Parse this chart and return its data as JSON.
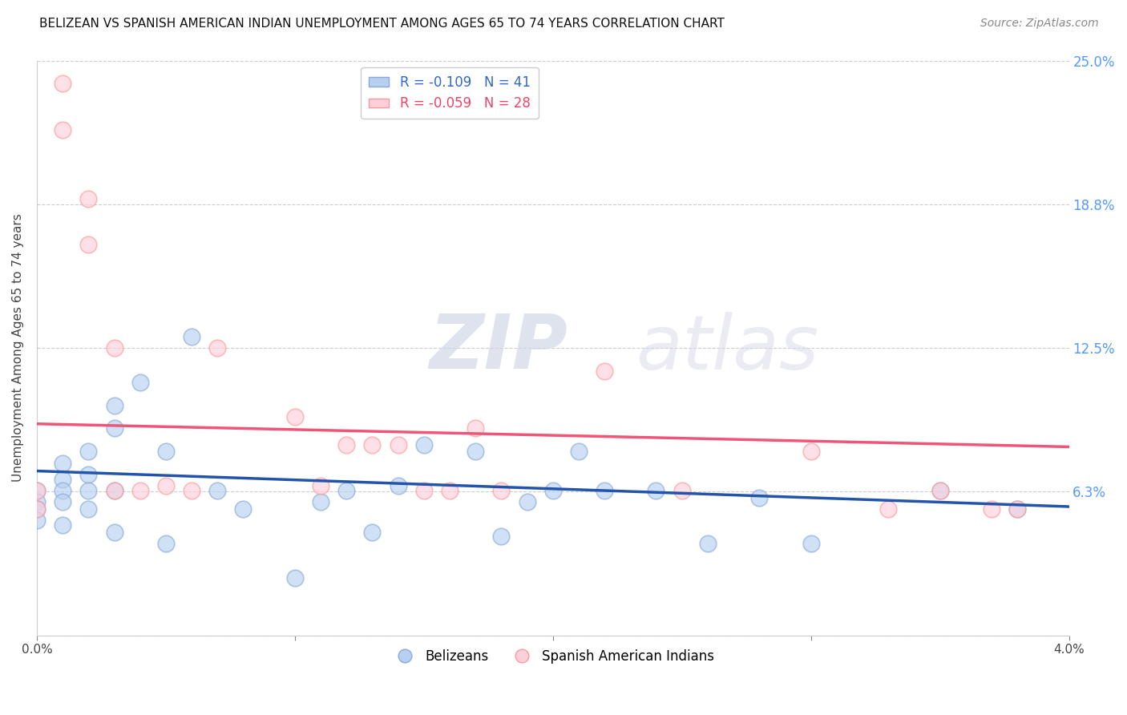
{
  "title": "BELIZEAN VS SPANISH AMERICAN INDIAN UNEMPLOYMENT AMONG AGES 65 TO 74 YEARS CORRELATION CHART",
  "source": "Source: ZipAtlas.com",
  "ylabel": "Unemployment Among Ages 65 to 74 years",
  "xlim": [
    0.0,
    0.04
  ],
  "ylim": [
    0.0,
    0.25
  ],
  "xticks": [
    0.0,
    0.01,
    0.02,
    0.03,
    0.04
  ],
  "xticklabels": [
    "0.0%",
    "",
    "",
    "",
    "4.0%"
  ],
  "ytick_positions": [
    0.0,
    0.0625,
    0.125,
    0.1875,
    0.25
  ],
  "ytick_labels": [
    "",
    "6.3%",
    "12.5%",
    "18.8%",
    "25.0%"
  ],
  "blue_R": "-0.109",
  "blue_N": "41",
  "pink_R": "-0.059",
  "pink_N": "28",
  "blue_line_color": "#2255AA",
  "pink_line_color": "#EE5577",
  "watermark_zip": "ZIP",
  "watermark_atlas": "atlas",
  "belizean_x": [
    0.0,
    0.0,
    0.0,
    0.0,
    0.001,
    0.001,
    0.001,
    0.001,
    0.001,
    0.002,
    0.002,
    0.002,
    0.002,
    0.003,
    0.003,
    0.003,
    0.003,
    0.004,
    0.005,
    0.005,
    0.006,
    0.007,
    0.008,
    0.01,
    0.011,
    0.012,
    0.013,
    0.014,
    0.015,
    0.017,
    0.018,
    0.019,
    0.02,
    0.021,
    0.022,
    0.024,
    0.026,
    0.028,
    0.03,
    0.035,
    0.038
  ],
  "belizean_y": [
    0.063,
    0.058,
    0.055,
    0.05,
    0.068,
    0.075,
    0.063,
    0.058,
    0.048,
    0.08,
    0.07,
    0.063,
    0.055,
    0.1,
    0.09,
    0.063,
    0.045,
    0.11,
    0.08,
    0.04,
    0.13,
    0.063,
    0.055,
    0.025,
    0.058,
    0.063,
    0.045,
    0.065,
    0.083,
    0.08,
    0.043,
    0.058,
    0.063,
    0.08,
    0.063,
    0.063,
    0.04,
    0.06,
    0.04,
    0.063,
    0.055
  ],
  "spanish_x": [
    0.0,
    0.0,
    0.001,
    0.001,
    0.002,
    0.002,
    0.003,
    0.003,
    0.004,
    0.005,
    0.006,
    0.007,
    0.01,
    0.011,
    0.012,
    0.013,
    0.014,
    0.015,
    0.016,
    0.017,
    0.018,
    0.022,
    0.025,
    0.03,
    0.033,
    0.035,
    0.037,
    0.038
  ],
  "spanish_y": [
    0.063,
    0.055,
    0.24,
    0.22,
    0.19,
    0.17,
    0.125,
    0.063,
    0.063,
    0.065,
    0.063,
    0.125,
    0.095,
    0.065,
    0.083,
    0.083,
    0.083,
    0.063,
    0.063,
    0.09,
    0.063,
    0.115,
    0.063,
    0.08,
    0.055,
    0.063,
    0.055,
    0.055
  ]
}
